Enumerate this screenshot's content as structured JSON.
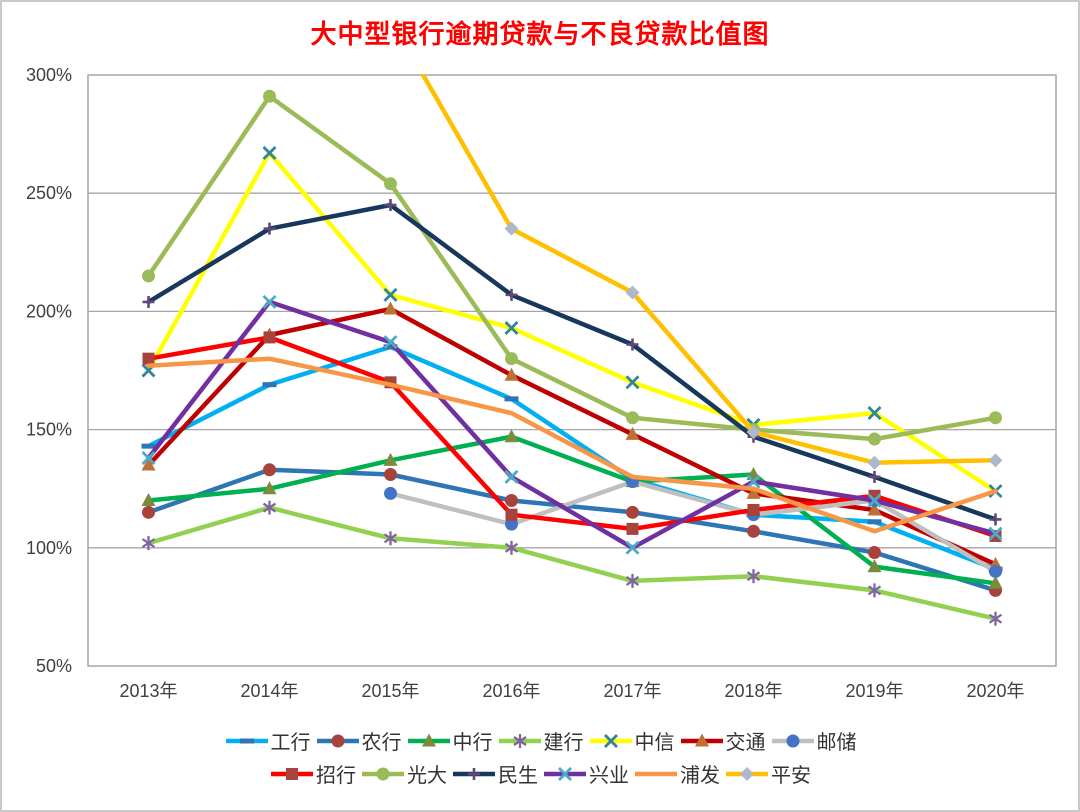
{
  "window": {
    "type_label": "line-chart-figure"
  },
  "chart_data": {
    "type": "line",
    "title": "大中型银行逾期贷款与不良贷款比值图",
    "title_color": "#ff0000",
    "categories": [
      "2013年",
      "2014年",
      "2015年",
      "2016年",
      "2017年",
      "2018年",
      "2019年",
      "2020年"
    ],
    "ylim": [
      50,
      300
    ],
    "y_tick_step": 50,
    "y_tick_labels": [
      "50%",
      "100%",
      "150%",
      "200%",
      "250%",
      "300%"
    ],
    "grid": true,
    "legend_position": "bottom",
    "legend_rows": [
      [
        "工行",
        "农行",
        "中行",
        "建行",
        "中信",
        "交通",
        "邮储"
      ],
      [
        "招行",
        "光大",
        "民生",
        "兴业",
        "浦发",
        "平安"
      ]
    ],
    "series": [
      {
        "name": "工行",
        "color": "#00B0F0",
        "marker": "dash",
        "marker_color": "#2E75B6",
        "values": [
          143,
          169,
          185,
          163,
          129,
          114,
          111,
          91
        ]
      },
      {
        "name": "农行",
        "color": "#2E75B6",
        "marker": "circle",
        "marker_color": "#A6433C",
        "values": [
          115,
          133,
          131,
          120,
          115,
          107,
          98,
          82
        ]
      },
      {
        "name": "中行",
        "color": "#00B050",
        "marker": "triangle",
        "marker_color": "#7A8C3C",
        "values": [
          120,
          125,
          137,
          147,
          128,
          131,
          92,
          85
        ]
      },
      {
        "name": "建行",
        "color": "#92D050",
        "marker": "asterisk",
        "marker_color": "#8064A2",
        "values": [
          102,
          117,
          104,
          100,
          86,
          88,
          82,
          70
        ]
      },
      {
        "name": "中信",
        "color": "#FFFF00",
        "marker": "x",
        "marker_color": "#31849B",
        "values": [
          175,
          267,
          207,
          193,
          170,
          152,
          157,
          124
        ]
      },
      {
        "name": "交通",
        "color": "#C00000",
        "marker": "triangle",
        "marker_color": "#BE7136",
        "values": [
          135,
          190,
          201,
          173,
          148,
          123,
          116,
          93
        ]
      },
      {
        "name": "邮储",
        "color": "#BFBFBF",
        "marker": "circle",
        "marker_color": "#4472C4",
        "values": [
          null,
          null,
          123,
          110,
          128,
          114,
          120,
          90
        ]
      },
      {
        "name": "招行",
        "color": "#FF0000",
        "marker": "square",
        "marker_color": "#A6433C",
        "values": [
          180,
          189,
          170,
          114,
          108,
          116,
          122,
          105
        ]
      },
      {
        "name": "光大",
        "color": "#9BBB59",
        "marker": "circle",
        "marker_color": "#9BBB59",
        "values": [
          215,
          291,
          254,
          180,
          155,
          150,
          146,
          155
        ]
      },
      {
        "name": "民生",
        "color": "#17375D",
        "marker": "plus",
        "marker_color": "#60497A",
        "values": [
          204,
          235,
          245,
          207,
          186,
          147,
          130,
          112
        ]
      },
      {
        "name": "兴业",
        "color": "#7030A0",
        "marker": "x",
        "marker_color": "#4BACC6",
        "values": [
          138,
          204,
          187,
          130,
          100,
          128,
          120,
          106
        ]
      },
      {
        "name": "浦发",
        "color": "#F79646",
        "marker": "none",
        "marker_color": "#F79646",
        "values": [
          177,
          180,
          169,
          157,
          130,
          125,
          107,
          124
        ]
      },
      {
        "name": "平安",
        "color": "#FFC000",
        "marker": "diamond",
        "marker_color": "#ADB9CA",
        "values": [
          null,
          null,
          324,
          235,
          208,
          149,
          136,
          137
        ]
      }
    ],
    "plot_border_color": "#A6A6A6",
    "gridline_color": "#A6A6A6",
    "axis_label_color": "#404040"
  }
}
